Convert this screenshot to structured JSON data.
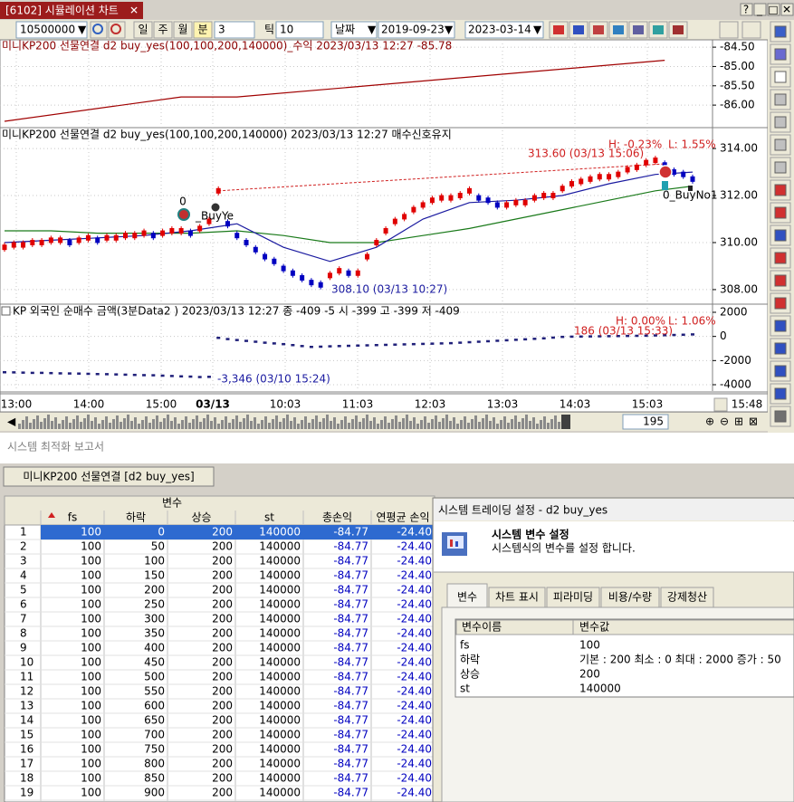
{
  "window": {
    "title": "[6102] 시뮬레이션 차트"
  },
  "toolbar": {
    "code": "10500000",
    "periods": [
      "일",
      "주",
      "월",
      "분"
    ],
    "minute": "3",
    "tick_label": "틱",
    "tick": "10",
    "date_label": "날짜",
    "start": "2019-09-23",
    "end": "2023-03-14"
  },
  "panels": [
    {
      "legend": "미니KP200 선물연결 d2 buy_yes(100,100,200,140000)_수익 2023/03/13 12:27 -85.78",
      "ylim": [
        -86.56,
        -84.31
      ],
      "yticks": [
        {
          "value": -84.5,
          "label": "-84.50"
        },
        {
          "value": -85,
          "label": "-85.00"
        },
        {
          "value": -85.5,
          "label": "-85.50"
        },
        {
          "value": -86,
          "label": "-86.00"
        }
      ],
      "annotations": [],
      "series": [
        {
          "kind": "line",
          "color": "#a00000",
          "x": [
            0,
            19,
            25,
            71
          ],
          "values": [
            -86.42,
            -85.79,
            -85.79,
            -84.84
          ]
        }
      ]
    },
    {
      "legend": "미니KP200 선물연결 d2 buy_yes(100,100,200,140000)  2023/03/13 12:27 매수신호유지",
      "ylim": [
        307.42,
        314.85
      ],
      "yticks": [
        {
          "value": 314,
          "label": "314.00"
        },
        {
          "value": 312,
          "label": "312.00"
        },
        {
          "value": 310,
          "label": "310.00"
        },
        {
          "value": 308,
          "label": "308.00"
        }
      ],
      "annotations": [
        "H: -0.23%",
        "L: 1.55%",
        "313.60 (03/13 15:06)",
        "308.10 (03/13 10:27)",
        "0",
        "_BuyYe",
        "0_BuyNo1"
      ],
      "series": [
        {
          "kind": "dashed",
          "color": "#d02020",
          "x": [
            23,
            71
          ],
          "values": [
            312.2,
            313.35
          ]
        },
        {
          "kind": "line",
          "color": "#1a7a1a",
          "x": [
            0,
            5,
            10,
            15,
            20,
            25,
            30,
            35,
            40,
            45,
            50,
            55,
            60,
            65,
            70,
            74
          ],
          "values": [
            310.5,
            310.5,
            310.4,
            310.4,
            310.4,
            310.5,
            310.3,
            310.0,
            310.0,
            310.3,
            310.6,
            311.0,
            311.4,
            311.8,
            312.2,
            312.4
          ]
        },
        {
          "kind": "line",
          "color": "#1a1aa0",
          "x": [
            0,
            5,
            10,
            15,
            20,
            25,
            30,
            35,
            40,
            45,
            50,
            55,
            60,
            65,
            70,
            74
          ],
          "values": [
            310.0,
            310.1,
            310.2,
            310.3,
            310.5,
            310.8,
            309.8,
            309.2,
            309.8,
            311.0,
            311.7,
            311.8,
            312.0,
            312.5,
            312.9,
            313.0
          ]
        },
        {
          "kind": "candle",
          "up_color": "#e00000",
          "down_color": "#0000c0",
          "values": [
            309.8,
            309.9,
            309.9,
            310.0,
            310.0,
            310.1,
            310.1,
            310.0,
            310.1,
            310.2,
            310.1,
            310.2,
            310.2,
            310.3,
            310.3,
            310.4,
            310.3,
            310.4,
            310.5,
            310.5,
            310.4,
            310.6,
            310.9,
            312.2,
            310.8,
            310.3,
            310.0,
            309.7,
            309.4,
            309.2,
            308.9,
            308.7,
            308.5,
            308.3,
            308.2,
            308.6,
            308.8,
            308.7,
            308.7,
            309.4,
            310.0,
            310.5,
            310.9,
            311.1,
            311.4,
            311.6,
            311.8,
            311.9,
            311.9,
            312.0,
            312.2,
            311.9,
            311.8,
            311.6,
            311.6,
            311.7,
            311.7,
            311.9,
            312.0,
            312.0,
            312.3,
            312.5,
            312.6,
            312.7,
            312.8,
            312.8,
            312.9,
            313.1,
            313.2,
            313.4,
            313.5,
            313.3,
            313.0,
            312.9,
            312.7
          ]
        }
      ]
    },
    {
      "legend": "KP 외국인 순매수 금액(3분Data2 ) 2023/03/13 12:27   종 -409 -5   시 -399 고 -399 저 -409",
      "ylim": [
        -4525,
        2600
      ],
      "yticks": [
        2000,
        0,
        -2000,
        -4000
      ],
      "annotations": [
        "H: 0.00%",
        "L: 1.06%",
        "186 (03/13 15:33)",
        "-3,346 (03/10 15:24)"
      ],
      "series": [
        {
          "kind": "dots",
          "color": "#20207a",
          "values": [
            -2950,
            -2960,
            -2980,
            -3000,
            -3000,
            -3020,
            -3040,
            -3050,
            -3060,
            -3080,
            -3100,
            -3110,
            -3130,
            -3150,
            -3170,
            -3190,
            -3200,
            -3230,
            -3260,
            -3290,
            -3310,
            -3346,
            -3330,
            -100,
            -200,
            -280,
            -350,
            -420,
            -500,
            -560,
            -620,
            -700,
            -780,
            -850,
            -830,
            -800,
            -780,
            -760,
            -740,
            -720,
            -700,
            -680,
            -660,
            -640,
            -620,
            -600,
            -580,
            -560,
            -540,
            -500,
            -460,
            -420,
            -380,
            -340,
            -300,
            -260,
            -220,
            -180,
            -140,
            -80,
            -20,
            0,
            10,
            20,
            30,
            40,
            50,
            60,
            70,
            80,
            100,
            120,
            140,
            160,
            186
          ]
        }
      ]
    }
  ],
  "x_axis": {
    "labels": [
      "13:00",
      "14:00",
      "15:00",
      "03/13",
      "10:03",
      "11:03",
      "12:03",
      "13:03",
      "14:03",
      "15:03",
      "15:48"
    ]
  },
  "scroll": "195",
  "report": {
    "title": "시스템 최적화 보고서",
    "tab": "미니KP200 선물연결 [d2 buy_yes]",
    "group_header": "변수",
    "columns": [
      "fs",
      "하락",
      "상승",
      "st",
      "총손익",
      "연평균 손익"
    ],
    "rows": [
      [
        "1",
        "100",
        "0",
        "200",
        "140000",
        "-84.77",
        "-24.40"
      ],
      [
        "2",
        "100",
        "50",
        "200",
        "140000",
        "-84.77",
        "-24.40"
      ],
      [
        "3",
        "100",
        "100",
        "200",
        "140000",
        "-84.77",
        "-24.40"
      ],
      [
        "4",
        "100",
        "150",
        "200",
        "140000",
        "-84.77",
        "-24.40"
      ],
      [
        "5",
        "100",
        "200",
        "200",
        "140000",
        "-84.77",
        "-24.40"
      ],
      [
        "6",
        "100",
        "250",
        "200",
        "140000",
        "-84.77",
        "-24.40"
      ],
      [
        "7",
        "100",
        "300",
        "200",
        "140000",
        "-84.77",
        "-24.40"
      ],
      [
        "8",
        "100",
        "350",
        "200",
        "140000",
        "-84.77",
        "-24.40"
      ],
      [
        "9",
        "100",
        "400",
        "200",
        "140000",
        "-84.77",
        "-24.40"
      ],
      [
        "10",
        "100",
        "450",
        "200",
        "140000",
        "-84.77",
        "-24.40"
      ],
      [
        "11",
        "100",
        "500",
        "200",
        "140000",
        "-84.77",
        "-24.40"
      ],
      [
        "12",
        "100",
        "550",
        "200",
        "140000",
        "-84.77",
        "-24.40"
      ],
      [
        "13",
        "100",
        "600",
        "200",
        "140000",
        "-84.77",
        "-24.40"
      ],
      [
        "14",
        "100",
        "650",
        "200",
        "140000",
        "-84.77",
        "-24.40"
      ],
      [
        "15",
        "100",
        "700",
        "200",
        "140000",
        "-84.77",
        "-24.40"
      ],
      [
        "16",
        "100",
        "750",
        "200",
        "140000",
        "-84.77",
        "-24.40"
      ],
      [
        "17",
        "100",
        "800",
        "200",
        "140000",
        "-84.77",
        "-24.40"
      ],
      [
        "18",
        "100",
        "850",
        "200",
        "140000",
        "-84.77",
        "-24.40"
      ],
      [
        "19",
        "100",
        "900",
        "200",
        "140000",
        "-84.77",
        "-24.40"
      ]
    ]
  },
  "dialog": {
    "title": "시스템 트레이딩 설정 - d2 buy_yes",
    "heading": "시스템 변수 설정",
    "description": "시스템식의 변수를 설정 합니다.",
    "tabs": [
      "변수",
      "차트 표시",
      "피라미딩",
      "비용/수량",
      "강제청산"
    ],
    "columns": [
      "변수이름",
      "변수값"
    ],
    "rows": [
      [
        "fs",
        "100"
      ],
      [
        "하락",
        "기본 : 200 최소 : 0  최대 : 2000  증가 : 50"
      ],
      [
        "상승",
        "200"
      ],
      [
        "st",
        "140000"
      ]
    ]
  }
}
